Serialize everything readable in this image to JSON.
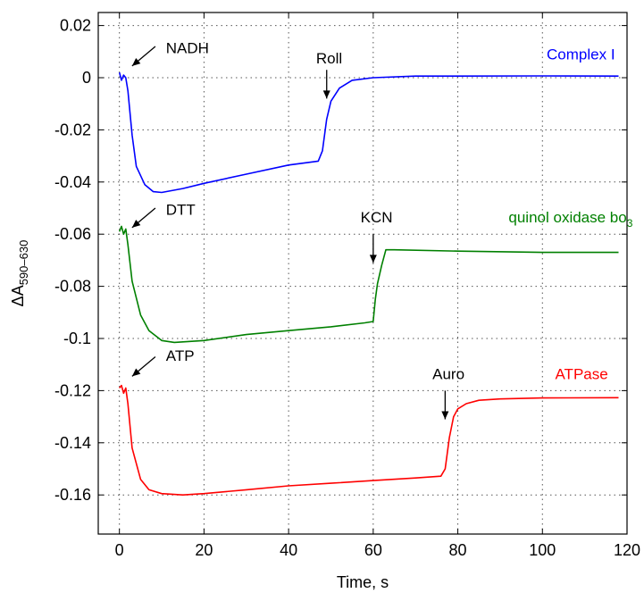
{
  "chart_data": {
    "type": "line",
    "xlabel": "Time, s",
    "ylabel_main": "ΔA",
    "ylabel_sub": "590–630",
    "xlim": [
      -5,
      120
    ],
    "ylim": [
      -0.175,
      0.025
    ],
    "xticks": [
      0,
      20,
      40,
      60,
      80,
      100,
      120
    ],
    "yticks": [
      0.02,
      0,
      -0.02,
      -0.04,
      -0.06,
      -0.08,
      -0.1,
      -0.12,
      -0.14,
      -0.16
    ],
    "ytick_labels": [
      "0.02",
      "0",
      "-0.02",
      "-0.04",
      "-0.06",
      "-0.08",
      "-0.1",
      "-0.12",
      "-0.14",
      "-0.16"
    ],
    "grid": true,
    "series": [
      {
        "name": "Complex I",
        "color": "#0000ff",
        "label_pos": [
          101,
          0.007
        ],
        "x": [
          0,
          0.5,
          1.0,
          1.5,
          2,
          3,
          4,
          6,
          8,
          10,
          15,
          20,
          30,
          40,
          47,
          48,
          49,
          50,
          52,
          55,
          60,
          70,
          80,
          100,
          118
        ],
        "y": [
          0.002,
          -0.001,
          0.001,
          0.0,
          -0.005,
          -0.022,
          -0.034,
          -0.041,
          -0.0437,
          -0.044,
          -0.0425,
          -0.0405,
          -0.037,
          -0.0335,
          -0.032,
          -0.028,
          -0.016,
          -0.009,
          -0.004,
          -0.001,
          0.0,
          0.0006,
          0.0006,
          0.0007,
          0.0006
        ]
      },
      {
        "name_main": "quinol oxidase bo",
        "name_sub": "3",
        "color": "#008000",
        "label_pos": [
          92,
          -0.0555
        ],
        "x": [
          0,
          0.5,
          1.0,
          1.5,
          2,
          3,
          5,
          7,
          10,
          13,
          20,
          30,
          40,
          50,
          58,
          60,
          60.5,
          61,
          62,
          63,
          65,
          80,
          100,
          118
        ],
        "y": [
          -0.059,
          -0.057,
          -0.06,
          -0.058,
          -0.064,
          -0.078,
          -0.091,
          -0.097,
          -0.1008,
          -0.1015,
          -0.1008,
          -0.0985,
          -0.097,
          -0.0955,
          -0.094,
          -0.0935,
          -0.085,
          -0.079,
          -0.072,
          -0.066,
          -0.066,
          -0.0665,
          -0.067,
          -0.067
        ]
      },
      {
        "name": "ATPase",
        "color": "#ff0000",
        "label_pos": [
          103,
          -0.1155
        ],
        "x": [
          0,
          0.5,
          1.0,
          1.5,
          2,
          3,
          5,
          7,
          10,
          15,
          20,
          30,
          40,
          50,
          60,
          70,
          76,
          77,
          78,
          79,
          80,
          82,
          85,
          90,
          100,
          118
        ],
        "y": [
          -0.119,
          -0.118,
          -0.121,
          -0.119,
          -0.125,
          -0.142,
          -0.154,
          -0.158,
          -0.1595,
          -0.16,
          -0.1595,
          -0.158,
          -0.1565,
          -0.1555,
          -0.1545,
          -0.1535,
          -0.1528,
          -0.15,
          -0.138,
          -0.13,
          -0.127,
          -0.125,
          -0.1237,
          -0.1232,
          -0.1228,
          -0.1227
        ]
      }
    ],
    "annotations": [
      {
        "text": "NADH",
        "text_x": 11,
        "text_y": 0.0115,
        "arrow_from": [
          8.5,
          0.012
        ],
        "arrow_to": [
          3,
          0.0045
        ]
      },
      {
        "text": "Roll",
        "text_x": 46.5,
        "text_y": 0.0075,
        "arrow_from": [
          49,
          0.003
        ],
        "arrow_to": [
          49,
          -0.008
        ]
      },
      {
        "text": "DTT",
        "text_x": 11,
        "text_y": -0.0505,
        "arrow_from": [
          8.5,
          -0.05
        ],
        "arrow_to": [
          3,
          -0.0575
        ]
      },
      {
        "text": "KCN",
        "text_x": 57,
        "text_y": -0.0535,
        "arrow_from": [
          60,
          -0.06
        ],
        "arrow_to": [
          60,
          -0.071
        ]
      },
      {
        "text": "ATP",
        "text_x": 11,
        "text_y": -0.1065,
        "arrow_from": [
          8.5,
          -0.107
        ],
        "arrow_to": [
          3,
          -0.1145
        ]
      },
      {
        "text": "Auro",
        "text_x": 74,
        "text_y": -0.1135,
        "arrow_from": [
          77,
          -0.12
        ],
        "arrow_to": [
          77,
          -0.131
        ]
      }
    ]
  }
}
